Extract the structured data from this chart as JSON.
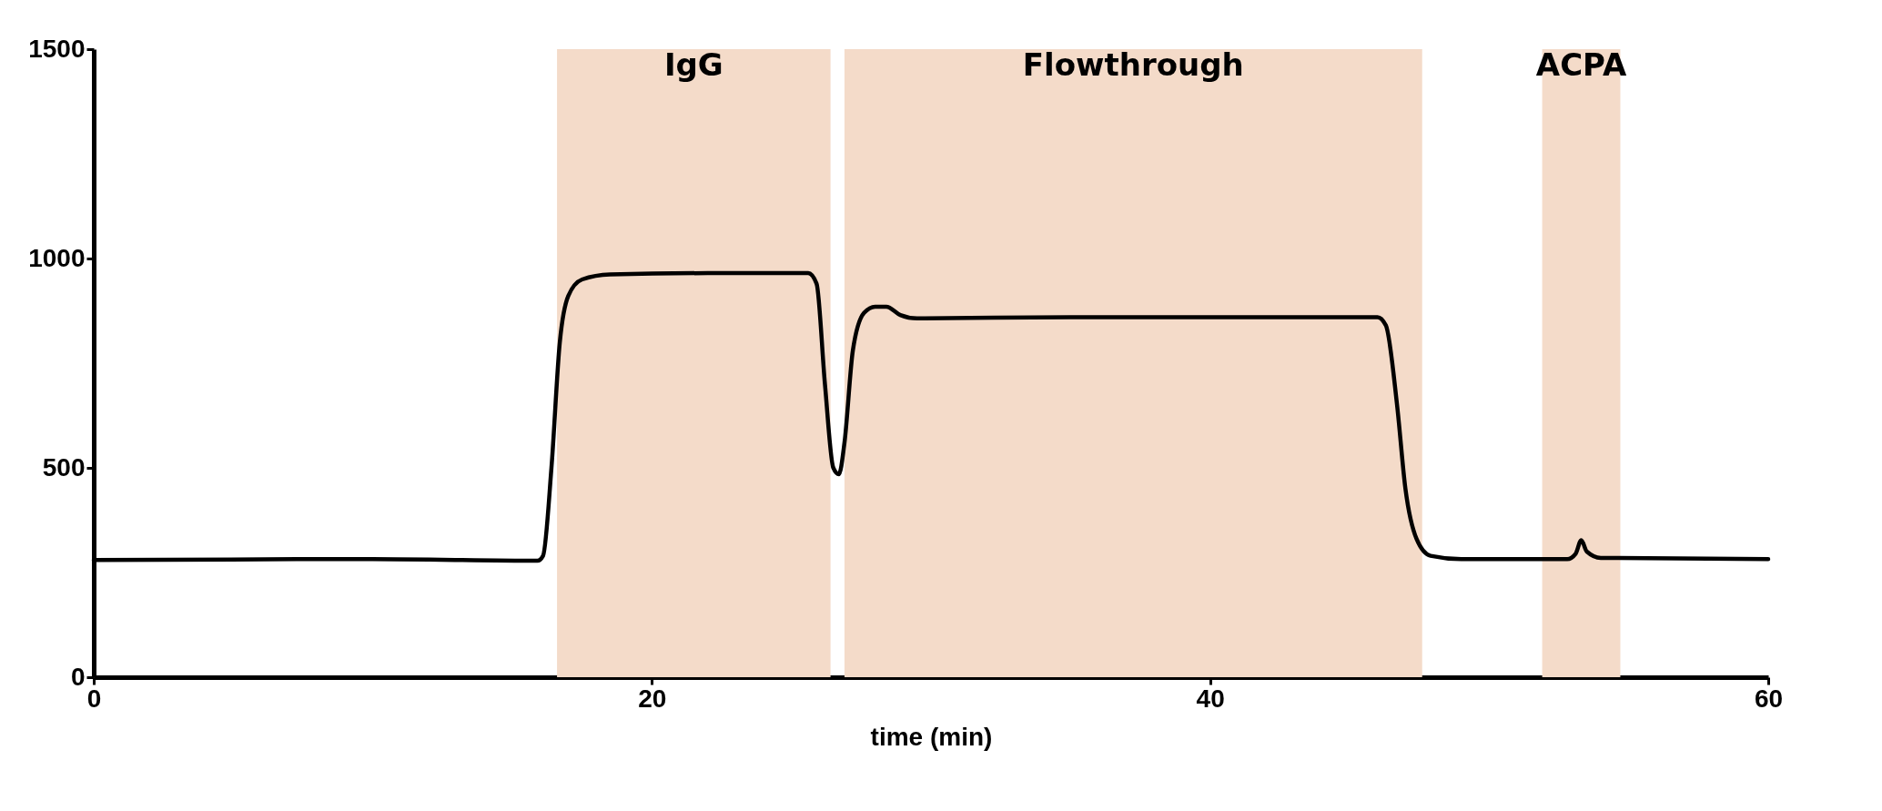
{
  "chart_data": {
    "type": "line",
    "xlabel": "time (min)",
    "x": [
      0,
      10,
      15.9,
      16.1,
      16.4,
      16.7,
      17.0,
      17.5,
      18.5,
      22,
      25.6,
      25.9,
      26.2,
      26.5,
      26.7,
      26.9,
      27.2,
      27.6,
      28.0,
      28.4,
      28.9,
      29.5,
      35,
      46.0,
      46.3,
      46.7,
      47.0,
      47.4,
      47.9,
      49,
      52.8,
      53.1,
      53.3,
      53.5,
      54,
      60
    ],
    "series": [
      {
        "color": "#000000",
        "values": [
          280,
          282,
          278,
          290,
          500,
          800,
          910,
          950,
          962,
          965,
          965,
          940,
          700,
          500,
          485,
          560,
          780,
          870,
          885,
          885,
          865,
          857,
          860,
          860,
          840,
          650,
          450,
          330,
          290,
          282,
          282,
          295,
          327,
          300,
          285,
          282
        ]
      }
    ],
    "xlim": [
      0,
      60
    ],
    "xticks": [
      0,
      20,
      40,
      60
    ],
    "ylim": [
      0,
      1500
    ],
    "yticks": [
      0,
      500,
      1000,
      1500
    ],
    "grid": false,
    "marker": "none",
    "line_style": "solid",
    "bands": [
      {
        "axis": "x",
        "from": 16.6,
        "to": 26.4,
        "label": "IgG",
        "color": "#f4dbc9"
      },
      {
        "axis": "x",
        "from": 26.9,
        "to": 47.6,
        "label": "Flowthrough",
        "color": "#f4dbc9"
      },
      {
        "axis": "x",
        "from": 51.9,
        "to": 54.7,
        "label": "ACPA",
        "color": "#f4dbc9"
      }
    ]
  }
}
